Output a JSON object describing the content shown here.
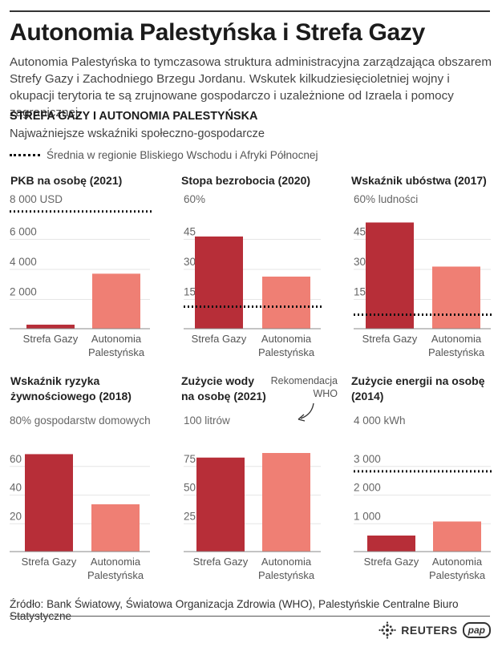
{
  "title": "Autonomia Palestyńska i Strefa Gazy",
  "intro": "Autonomia Palestyńska to tymczasowa struktura administracyjna zarządzająca obszarem Strefy Gazy i Zachodniego Brzegu Jordanu. Wskutek kilkudziesięcioletniej wojny i okupacji terytoria te są zrujnowane gospodarczo i uzależnione od Izraela i pomocy zagranicznej.",
  "subtitle": "STREFA GAZY I AUTONOMIA PALESTYŃSKA",
  "subtitle2": "Najważniejsze wskaźniki społeczno-gospodarcze",
  "legend_label": "Średnia w regionie Bliskiego Wschodu i Afryki Północnej",
  "source": "Źródło: Bank Światowy, Światowa Organizacja Zdrowia (WHO), Palestyńskie Centralne Biuro Statystyczne",
  "logos": {
    "reuters": "REUTERS",
    "pap": "pap"
  },
  "colors": {
    "gaza": "#b72e38",
    "pa": "#ef7f74",
    "axis": "#888888",
    "reference": "#111111"
  },
  "chart_data": [
    {
      "type": "bar",
      "title": "PKB na osobę (2021)",
      "unit_label": "8 000 USD",
      "categories": [
        "Strefa Gazy",
        "Autonomia Palestyńska"
      ],
      "values": [
        270,
        3660
      ],
      "ylim": [
        0,
        8000
      ],
      "ticks": [
        2000,
        4000,
        6000
      ],
      "tick_labels": [
        "2 000",
        "4 000",
        "6 000"
      ],
      "reference": 7800
    },
    {
      "type": "bar",
      "title": "Stopa bezrobocia (2020)",
      "unit_label": "60%",
      "categories": [
        "Strefa Gazy",
        "Autonomia Palestyńska"
      ],
      "values": [
        46,
        26
      ],
      "ylim": [
        0,
        60
      ],
      "ticks": [
        15,
        30,
        45
      ],
      "tick_labels": [
        "15",
        "30",
        "45"
      ],
      "reference": 11
    },
    {
      "type": "bar",
      "title": "Wskaźnik ubóstwa (2017)",
      "unit_label": "60% ludności",
      "categories": [
        "Strefa Gazy",
        "Autonomia Palestyńska"
      ],
      "values": [
        53,
        31
      ],
      "ylim": [
        0,
        60
      ],
      "ticks": [
        15,
        30,
        45
      ],
      "tick_labels": [
        "15",
        "30",
        "45"
      ],
      "reference": 7
    },
    {
      "type": "bar",
      "title": "Wskaźnik ryzyka żywnościowego (2018)",
      "title_lines": [
        "Wskaźnik ryzyka",
        "żywnościowego (2018)"
      ],
      "unit_label": "80% gospodarstw domowych",
      "categories": [
        "Strefa Gazy",
        "Autonomia Palestyńska"
      ],
      "values": [
        68,
        33
      ],
      "ylim": [
        0,
        80
      ],
      "ticks": [
        20,
        40,
        60
      ],
      "tick_labels": [
        "20",
        "40",
        "60"
      ]
    },
    {
      "type": "bar",
      "title": "Zużycie wody na osobę (2021)",
      "title_lines": [
        "Zużycie wody",
        "na osobę (2021)"
      ],
      "unit_label": "100 litrów",
      "annotation": "Rekomendacja WHO",
      "annotation_lines": [
        "Rekomendacja",
        "WHO"
      ],
      "categories": [
        "Strefa Gazy",
        "Autonomia Palestyńska"
      ],
      "values": [
        82,
        86
      ],
      "ylim": [
        0,
        100
      ],
      "ticks": [
        25,
        50,
        75
      ],
      "tick_labels": [
        "25",
        "50",
        "75"
      ]
    },
    {
      "type": "bar",
      "title": "Zużycie energii na osobę (2014)",
      "title_lines": [
        "Zużycie energii na osobę",
        "(2014)"
      ],
      "unit_label": "4 000 kWh",
      "categories": [
        "Strefa Gazy",
        "Autonomia Palestyńska"
      ],
      "values": [
        560,
        1050
      ],
      "ylim": [
        0,
        4000
      ],
      "ticks": [
        1000,
        2000,
        3000
      ],
      "tick_labels": [
        "1 000",
        "2 000",
        "3 000"
      ],
      "reference": 2800
    }
  ]
}
